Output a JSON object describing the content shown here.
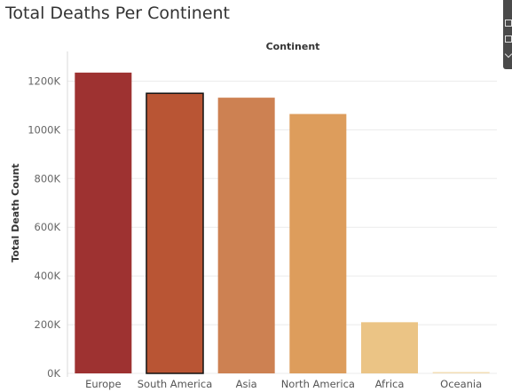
{
  "chart_data": {
    "type": "bar",
    "title": "Total Deaths Per Continent",
    "column_header": "Continent",
    "ylabel": "Total Death Count",
    "categories": [
      "Europe",
      "South America",
      "Asia",
      "North America",
      "Africa",
      "Oceania"
    ],
    "values": [
      1235000,
      1150000,
      1132000,
      1065000,
      210000,
      2000
    ],
    "colors": [
      "#9e3231",
      "#b95534",
      "#cd8152",
      "#dd9d5c",
      "#ebc485",
      "#f3ddb5"
    ],
    "highlighted_category": "South America",
    "ylim": [
      0,
      1300000
    ],
    "yticks": [
      0,
      200000,
      400000,
      600000,
      800000,
      1000000,
      1200000
    ],
    "ytick_labels": [
      "0K",
      "200K",
      "400K",
      "600K",
      "800K",
      "1000K",
      "1200K"
    ],
    "grid": true,
    "legend": "none"
  }
}
